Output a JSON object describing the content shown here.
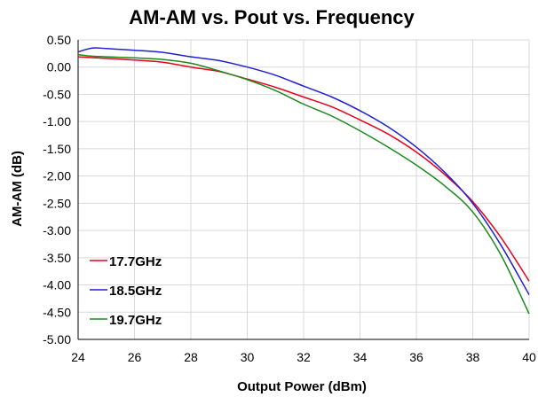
{
  "chart_data": {
    "type": "line",
    "title": "AM-AM vs. Pout vs. Frequency",
    "xlabel": "Output Power (dBm)",
    "ylabel": "AM-AM (dB)",
    "xlim": [
      24,
      40
    ],
    "ylim": [
      -5.0,
      0.5
    ],
    "x_ticks": [
      "24",
      "26",
      "28",
      "30",
      "32",
      "34",
      "36",
      "38",
      "40"
    ],
    "y_ticks": [
      "0.50",
      "0.00",
      "-0.50",
      "-1.00",
      "-1.50",
      "-2.00",
      "-2.50",
      "-3.00",
      "-3.50",
      "-4.00",
      "-4.50",
      "-5.00"
    ],
    "grid": true,
    "legend_position": "bottom-left",
    "series": [
      {
        "name": "17.7GHz",
        "color": "#e8001c",
        "x": [
          24,
          25,
          26,
          27,
          28,
          29,
          30,
          31,
          32,
          33,
          34,
          35,
          36,
          37,
          38,
          39,
          40
        ],
        "y": [
          0.19,
          0.16,
          0.13,
          0.09,
          0.0,
          -0.08,
          -0.22,
          -0.37,
          -0.55,
          -0.73,
          -0.97,
          -1.23,
          -1.56,
          -1.97,
          -2.47,
          -3.13,
          -3.93
        ]
      },
      {
        "name": "18.5GHz",
        "color": "#1f1fd6",
        "x": [
          24,
          24.5,
          25,
          26,
          27,
          28,
          29,
          30,
          31,
          32,
          33,
          34,
          35,
          36,
          37,
          38,
          39,
          40
        ],
        "y": [
          0.28,
          0.35,
          0.34,
          0.31,
          0.27,
          0.19,
          0.12,
          0.0,
          -0.15,
          -0.35,
          -0.55,
          -0.8,
          -1.1,
          -1.47,
          -1.93,
          -2.5,
          -3.27,
          -4.18
        ]
      },
      {
        "name": "19.7GHz",
        "color": "#1a8a1a",
        "x": [
          24,
          24.5,
          25,
          26,
          27,
          28,
          29,
          30,
          31,
          32,
          33,
          34,
          35,
          36,
          37,
          38,
          39,
          40
        ],
        "y": [
          0.23,
          0.2,
          0.19,
          0.17,
          0.14,
          0.07,
          -0.07,
          -0.23,
          -0.43,
          -0.68,
          -0.9,
          -1.17,
          -1.47,
          -1.8,
          -2.18,
          -2.66,
          -3.45,
          -4.53
        ]
      }
    ]
  }
}
